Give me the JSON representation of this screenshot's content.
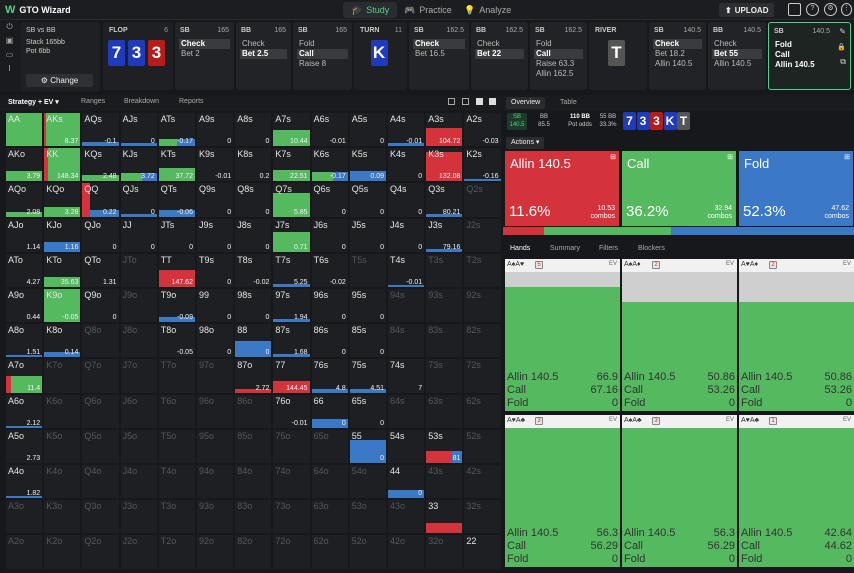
{
  "app": {
    "name": "GTO Wizard"
  },
  "nav": [
    {
      "label": "Study",
      "active": true
    },
    {
      "label": "Practice",
      "active": false
    },
    {
      "label": "Analyze",
      "active": false
    }
  ],
  "upload_label": "UPLOAD",
  "info": {
    "title": "SB vs BB",
    "stack": "Stack 165bb",
    "pot": "Pot 6bb",
    "change_label": "Change"
  },
  "streets": [
    {
      "name": "FLOP",
      "num": "6",
      "cards": [
        {
          "r": "7",
          "c": "blue"
        },
        {
          "r": "3",
          "c": "blue"
        },
        {
          "r": "3",
          "c": "red"
        }
      ]
    },
    {
      "name": "TURN",
      "num": "11",
      "cards": [
        {
          "r": "K",
          "c": "blue"
        }
      ]
    },
    {
      "name": "RIVER",
      "num": "",
      "cards": [
        {
          "r": "T",
          "c": "gray"
        }
      ]
    }
  ],
  "action_cols": [
    {
      "pos": "SB",
      "stack": "165",
      "opts": [
        {
          "t": "Check",
          "sel": true
        },
        {
          "t": "Bet 2",
          "sel": false
        }
      ]
    },
    {
      "pos": "BB",
      "stack": "165",
      "opts": [
        {
          "t": "Check",
          "sel": false
        },
        {
          "t": "Bet 2.5",
          "sel": true
        }
      ]
    },
    {
      "pos": "SB",
      "stack": "165",
      "opts": [
        {
          "t": "Fold",
          "sel": false
        },
        {
          "t": "Call",
          "sel": true
        },
        {
          "t": "Raise 8",
          "sel": false
        }
      ]
    },
    {
      "pos": "SB",
      "stack": "162.5",
      "opts": [
        {
          "t": "Check",
          "sel": true
        },
        {
          "t": "Bet 16.5",
          "sel": false
        }
      ]
    },
    {
      "pos": "BB",
      "stack": "162.5",
      "opts": [
        {
          "t": "Check",
          "sel": false
        },
        {
          "t": "Bet 22",
          "sel": true
        }
      ]
    },
    {
      "pos": "SB",
      "stack": "162.5",
      "opts": [
        {
          "t": "Fold",
          "sel": false
        },
        {
          "t": "Call",
          "sel": true
        },
        {
          "t": "Raise 63.3",
          "sel": false
        },
        {
          "t": "Allin 162.5",
          "sel": false
        }
      ]
    },
    {
      "pos": "SB",
      "stack": "140.5",
      "opts": [
        {
          "t": "Check",
          "sel": true
        },
        {
          "t": "Bet 18.2",
          "sel": false
        },
        {
          "t": "Allin 140.5",
          "sel": false
        }
      ]
    },
    {
      "pos": "BB",
      "stack": "140.5",
      "opts": [
        {
          "t": "Check",
          "sel": false
        },
        {
          "t": "Bet 55",
          "sel": true
        },
        {
          "t": "Allin 140.5",
          "sel": false
        }
      ]
    },
    {
      "pos": "SB",
      "stack": "140.5",
      "opts": [
        {
          "t": "Fold",
          "sel": false
        },
        {
          "t": "Call",
          "sel": false
        },
        {
          "t": "Allin 140.5",
          "sel": false
        }
      ]
    }
  ],
  "grid_tabs": {
    "strategy": "Strategy + EV",
    "ranges": "Ranges",
    "breakdown": "Breakdown",
    "reports": "Reports"
  },
  "grid": [
    [
      [
        "AA",
        "",
        "a"
      ],
      [
        "AKs",
        "8.37",
        "a"
      ],
      [
        "AQs",
        "-0.1",
        "a"
      ],
      [
        "AJs",
        "0",
        "a"
      ],
      [
        "ATs",
        "-0.17",
        "a"
      ],
      [
        "A9s",
        "0",
        "a"
      ],
      [
        "A8s",
        "0",
        "a"
      ],
      [
        "A7s",
        "10.44",
        "a"
      ],
      [
        "A6s",
        "-0.01",
        "a"
      ],
      [
        "A5s",
        "0",
        "a"
      ],
      [
        "A4s",
        "-0.01",
        "a"
      ],
      [
        "A3s",
        "104.72",
        "a"
      ],
      [
        "A2s",
        "-0.03",
        "a"
      ]
    ],
    [
      [
        "AKo",
        "3.79",
        "a"
      ],
      [
        "KK",
        "148.34",
        "a"
      ],
      [
        "KQs",
        "2.48",
        "a"
      ],
      [
        "KJs",
        "3.72",
        "a"
      ],
      [
        "KTs",
        "37.72",
        "a"
      ],
      [
        "K9s",
        "-0.01",
        "a"
      ],
      [
        "K8s",
        "0.2",
        "a"
      ],
      [
        "K7s",
        "22.51",
        "a"
      ],
      [
        "K6s",
        "-0.17",
        "a"
      ],
      [
        "K5s",
        "0.09",
        "a"
      ],
      [
        "K4s",
        "0",
        "a"
      ],
      [
        "K3s",
        "132.08",
        "a"
      ],
      [
        "K2s",
        "-0.16",
        "a"
      ]
    ],
    [
      [
        "AQo",
        "2.08",
        "a"
      ],
      [
        "KQo",
        "3.28",
        "a"
      ],
      [
        "QQ",
        "0.22",
        "a"
      ],
      [
        "QJs",
        "0",
        "a"
      ],
      [
        "QTs",
        "-0.06",
        "a"
      ],
      [
        "Q9s",
        "0",
        "a"
      ],
      [
        "Q8s",
        "0",
        "a"
      ],
      [
        "Q7s",
        "5.85",
        "a"
      ],
      [
        "Q6s",
        "0",
        "a"
      ],
      [
        "Q5s",
        "0",
        "a"
      ],
      [
        "Q4s",
        "0",
        "a"
      ],
      [
        "Q3s",
        "80.21",
        "a"
      ],
      [
        "Q2s",
        "",
        "d"
      ]
    ],
    [
      [
        "AJo",
        "1.14",
        "a"
      ],
      [
        "KJo",
        "1.16",
        "a"
      ],
      [
        "QJo",
        "0",
        "a"
      ],
      [
        "JJ",
        "0",
        "a"
      ],
      [
        "JTs",
        "0",
        "a"
      ],
      [
        "J9s",
        "0",
        "a"
      ],
      [
        "J8s",
        "0",
        "a"
      ],
      [
        "J7s",
        "0.71",
        "a"
      ],
      [
        "J6s",
        "0",
        "a"
      ],
      [
        "J5s",
        "0",
        "a"
      ],
      [
        "J4s",
        "0",
        "a"
      ],
      [
        "J3s",
        "79.16",
        "a"
      ],
      [
        "J2s",
        "",
        "d"
      ]
    ],
    [
      [
        "ATo",
        "4.27",
        "a"
      ],
      [
        "KTo",
        "35.63",
        "a"
      ],
      [
        "QTo",
        "1.31",
        "a"
      ],
      [
        "JTo",
        "",
        "d"
      ],
      [
        "TT",
        "147.62",
        "a"
      ],
      [
        "T9s",
        "0",
        "a"
      ],
      [
        "T8s",
        "-0.02",
        "a"
      ],
      [
        "T7s",
        "5.25",
        "a"
      ],
      [
        "T6s",
        "-0.02",
        "a"
      ],
      [
        "T5s",
        "",
        "d"
      ],
      [
        "T4s",
        "-0.01",
        "a"
      ],
      [
        "T3s",
        "",
        "d"
      ],
      [
        "T2s",
        "",
        "d"
      ]
    ],
    [
      [
        "A9o",
        "0.44",
        "a"
      ],
      [
        "K9o",
        "-0.05",
        "a"
      ],
      [
        "Q9o",
        "0",
        "a"
      ],
      [
        "J9o",
        "",
        "d"
      ],
      [
        "T9o",
        "-0.09",
        "a"
      ],
      [
        "99",
        "0",
        "a"
      ],
      [
        "98s",
        "0",
        "a"
      ],
      [
        "97s",
        "1.94",
        "a"
      ],
      [
        "96s",
        "0",
        "a"
      ],
      [
        "95s",
        "0",
        "a"
      ],
      [
        "94s",
        "",
        "d"
      ],
      [
        "93s",
        "",
        "d"
      ],
      [
        "92s",
        "",
        "d"
      ]
    ],
    [
      [
        "A8o",
        "1.51",
        "a"
      ],
      [
        "K8o",
        "0.14",
        "a"
      ],
      [
        "Q8o",
        "",
        "d"
      ],
      [
        "J8o",
        "",
        "d"
      ],
      [
        "T8o",
        "-0.05",
        "a"
      ],
      [
        "98o",
        "0",
        "a"
      ],
      [
        "88",
        "0",
        "a"
      ],
      [
        "87s",
        "1.68",
        "a"
      ],
      [
        "86s",
        "0",
        "a"
      ],
      [
        "85s",
        "0",
        "a"
      ],
      [
        "84s",
        "",
        "d"
      ],
      [
        "83s",
        "",
        "d"
      ],
      [
        "82s",
        "",
        "d"
      ]
    ],
    [
      [
        "A7o",
        "11.4",
        "a"
      ],
      [
        "K7o",
        "",
        "d"
      ],
      [
        "Q7o",
        "",
        "d"
      ],
      [
        "J7o",
        "",
        "d"
      ],
      [
        "T7o",
        "",
        "d"
      ],
      [
        "97o",
        "",
        "d"
      ],
      [
        "87o",
        "2.72",
        "a"
      ],
      [
        "77",
        "144.45",
        "a"
      ],
      [
        "76s",
        "4.8",
        "a"
      ],
      [
        "75s",
        "4.51",
        "a"
      ],
      [
        "74s",
        "7",
        "a"
      ],
      [
        "73s",
        "",
        "d"
      ],
      [
        "72s",
        "",
        "d"
      ]
    ],
    [
      [
        "A6o",
        "2.12",
        "a"
      ],
      [
        "K6o",
        "",
        "d"
      ],
      [
        "Q6o",
        "",
        "d"
      ],
      [
        "J6o",
        "",
        "d"
      ],
      [
        "T6o",
        "",
        "d"
      ],
      [
        "96o",
        "",
        "d"
      ],
      [
        "86o",
        "",
        "d"
      ],
      [
        "76o",
        "-0.01",
        "a"
      ],
      [
        "66",
        "0",
        "a"
      ],
      [
        "65s",
        "0",
        "a"
      ],
      [
        "64s",
        "",
        "d"
      ],
      [
        "63s",
        "",
        "d"
      ],
      [
        "62s",
        "",
        "d"
      ]
    ],
    [
      [
        "A5o",
        "2.73",
        "a"
      ],
      [
        "K5o",
        "",
        "d"
      ],
      [
        "Q5o",
        "",
        "d"
      ],
      [
        "J5o",
        "",
        "d"
      ],
      [
        "T5o",
        "",
        "d"
      ],
      [
        "95o",
        "",
        "d"
      ],
      [
        "85o",
        "",
        "d"
      ],
      [
        "75o",
        "",
        "d"
      ],
      [
        "65o",
        "",
        "d"
      ],
      [
        "55",
        "0",
        "a"
      ],
      [
        "54s",
        "",
        "a"
      ],
      [
        "53s",
        "81",
        "a"
      ],
      [
        "52s",
        "",
        "d"
      ]
    ],
    [
      [
        "A4o",
        "1.82",
        "a"
      ],
      [
        "K4o",
        "",
        "d"
      ],
      [
        "Q4o",
        "",
        "d"
      ],
      [
        "J4o",
        "",
        "d"
      ],
      [
        "T4o",
        "",
        "d"
      ],
      [
        "94o",
        "",
        "d"
      ],
      [
        "84o",
        "",
        "d"
      ],
      [
        "74o",
        "",
        "d"
      ],
      [
        "64o",
        "",
        "d"
      ],
      [
        "54o",
        "",
        "d"
      ],
      [
        "44",
        "0",
        "a"
      ],
      [
        "43s",
        "",
        "d"
      ],
      [
        "42s",
        "",
        "d"
      ]
    ],
    [
      [
        "A3o",
        "",
        "d"
      ],
      [
        "K3o",
        "",
        "d"
      ],
      [
        "Q3o",
        "",
        "d"
      ],
      [
        "J3o",
        "",
        "d"
      ],
      [
        "T3o",
        "",
        "d"
      ],
      [
        "93o",
        "",
        "d"
      ],
      [
        "83o",
        "",
        "d"
      ],
      [
        "73o",
        "",
        "d"
      ],
      [
        "63o",
        "",
        "d"
      ],
      [
        "53o",
        "",
        "d"
      ],
      [
        "43o",
        "",
        "d"
      ],
      [
        "33",
        "",
        "a"
      ],
      [
        "32s",
        "",
        "d"
      ]
    ],
    [
      [
        "A2o",
        "",
        "d"
      ],
      [
        "K2o",
        "",
        "d"
      ],
      [
        "Q2o",
        "",
        "d"
      ],
      [
        "J2o",
        "",
        "d"
      ],
      [
        "T2o",
        "",
        "d"
      ],
      [
        "92o",
        "",
        "d"
      ],
      [
        "82o",
        "",
        "d"
      ],
      [
        "72o",
        "",
        "d"
      ],
      [
        "62o",
        "",
        "d"
      ],
      [
        "52o",
        "",
        "d"
      ],
      [
        "42o",
        "",
        "d"
      ],
      [
        "32o",
        "",
        "d"
      ],
      [
        "22",
        "",
        "a"
      ]
    ]
  ],
  "right_tabs": {
    "overview": "Overview",
    "table": "Table"
  },
  "stats": {
    "sb_label": "SB",
    "sb_value": "140.5",
    "bb_label": "BB",
    "bb_value": "85.5",
    "pot": "110 BB",
    "pot_odds_label": "Pot odds",
    "bb2": "55 BB",
    "pct": "33.3%"
  },
  "mini_board": [
    {
      "r": "7",
      "c": "blue"
    },
    {
      "r": "3",
      "c": "blue"
    },
    {
      "r": "3",
      "c": "red"
    },
    {
      "r": "K",
      "c": "blue"
    },
    {
      "r": "T",
      "c": "gray"
    }
  ],
  "actions_label": "Actions",
  "actions": [
    {
      "name": "Allin 140.5",
      "pct": "11.6%",
      "combos": "10.53",
      "frac": 0.116,
      "color": "#d5333b"
    },
    {
      "name": "Call",
      "pct": "36.2%",
      "combos": "32.94",
      "frac": 0.362,
      "color": "#55b960"
    },
    {
      "name": "Fold",
      "pct": "52.3%",
      "combos": "47.62",
      "frac": 0.523,
      "color": "#3b78c6"
    }
  ],
  "combos_label": "combos",
  "hands_tabs": {
    "hands": "Hands",
    "summary": "Summary",
    "filters": "Filters",
    "blockers": "Blockers"
  },
  "ev_label": "EV",
  "hand_cards": [
    {
      "combo": "A♠A♥",
      "n": "5",
      "evs": [
        "66.9",
        "67.16",
        "0"
      ],
      "gray": 0.11
    },
    {
      "combo": "A♠A♦",
      "n": "2",
      "evs": [
        "50.86",
        "53.26",
        "0"
      ],
      "gray": 0.0
    },
    {
      "combo": "A♥A♦",
      "n": "2",
      "evs": [
        "50.86",
        "53.26",
        "0"
      ],
      "gray": 0.0
    },
    {
      "combo": "A♥A♣",
      "n": "3",
      "evs": [
        "56.3",
        "56.29",
        "0"
      ],
      "gray": 0.0
    },
    {
      "combo": "A♠A♣",
      "n": "3",
      "evs": [
        "56.3",
        "56.29",
        "0"
      ],
      "gray": 0.0
    },
    {
      "combo": "A♥A♣",
      "n": "1",
      "evs": [
        "42.64",
        "44.62",
        "0"
      ],
      "gray": 0.0
    }
  ],
  "hand_row_labels": [
    "Allin 140.5",
    "Call",
    "Fold"
  ]
}
